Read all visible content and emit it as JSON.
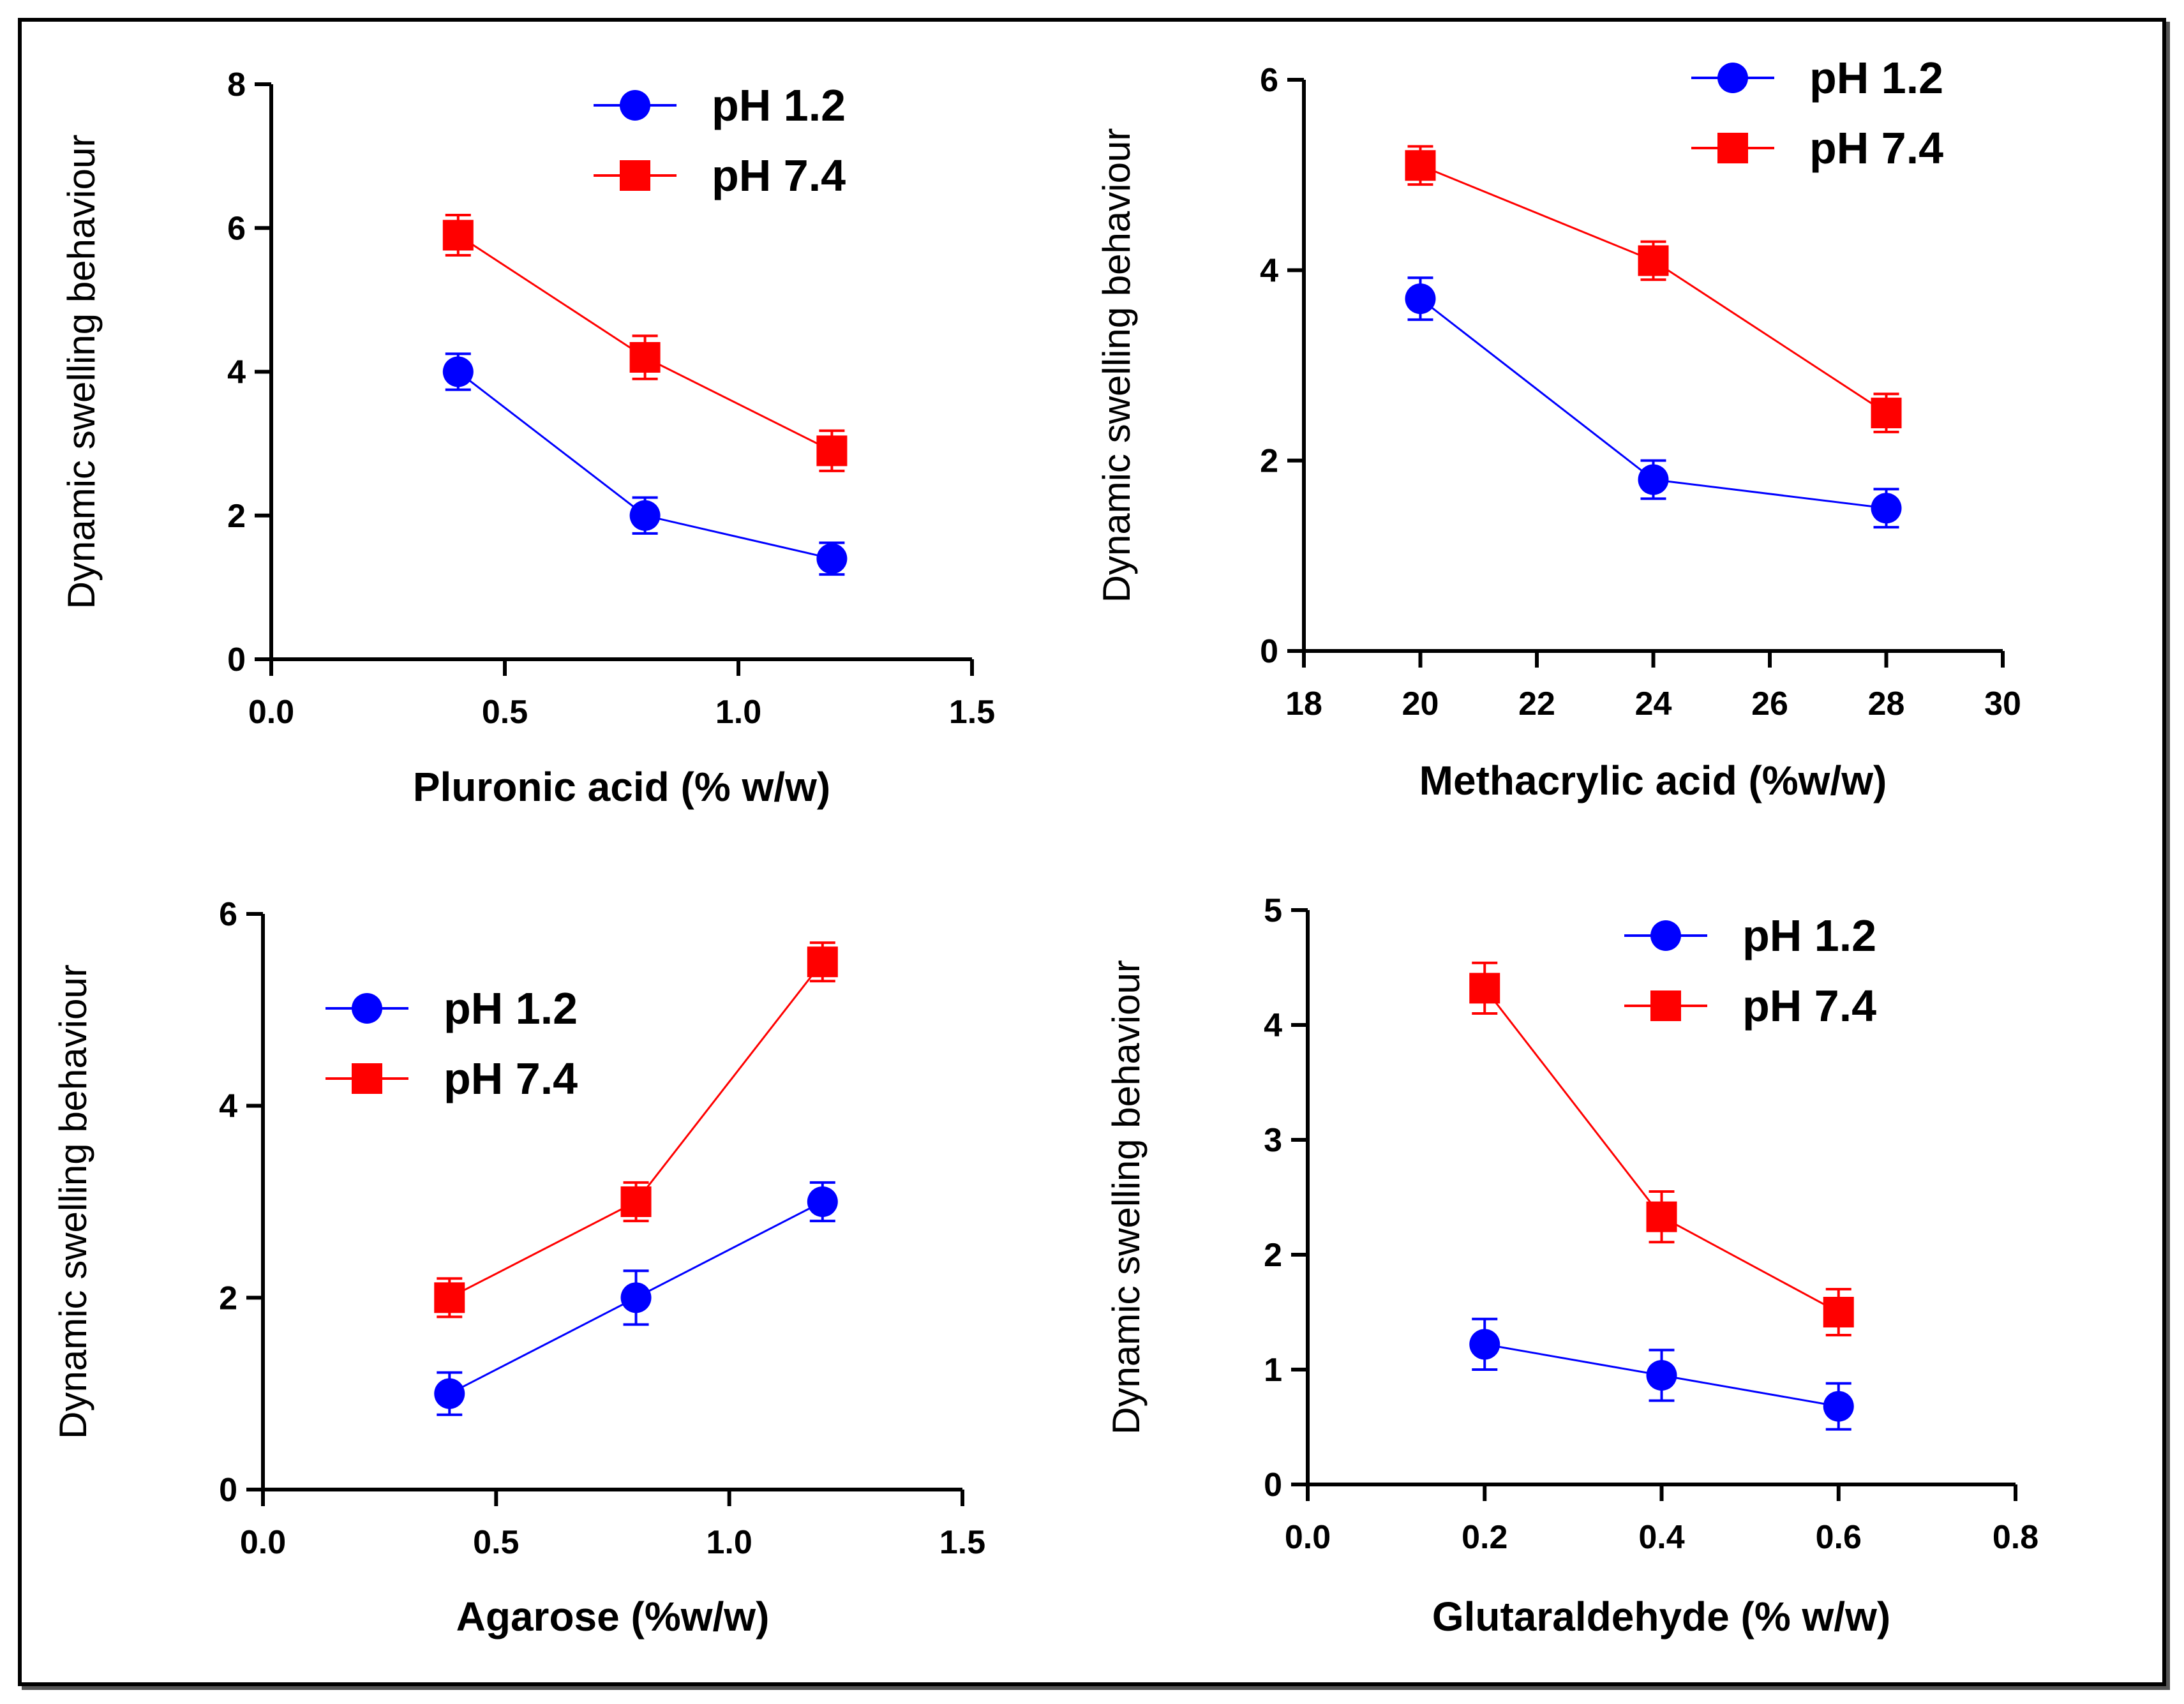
{
  "colors": {
    "ph12": "#0000ff",
    "ph74": "#ff0000",
    "axis": "#000000"
  },
  "chart_data": [
    {
      "type": "line",
      "title": "",
      "xlabel": "Pluronic acid (% w/w)",
      "ylabel": "Dynamic swelling behaviour",
      "xlim": [
        0.0,
        1.5
      ],
      "ylim": [
        0,
        8
      ],
      "xticks": [
        "0.0",
        "0.5",
        "1.0",
        "1.5"
      ],
      "yticks": [
        "0",
        "2",
        "4",
        "6",
        "8"
      ],
      "legend_position": "top-right",
      "series": [
        {
          "name": "pH 1.2",
          "color": "#0000ff",
          "marker": "circle",
          "x": [
            0.4,
            0.8,
            1.2
          ],
          "y": [
            4.0,
            2.0,
            1.4
          ],
          "err": [
            0.25,
            0.25,
            0.22
          ]
        },
        {
          "name": "pH 7.4",
          "color": "#ff0000",
          "marker": "square",
          "x": [
            0.4,
            0.8,
            1.2
          ],
          "y": [
            5.9,
            4.2,
            2.9
          ],
          "err": [
            0.28,
            0.3,
            0.28
          ]
        }
      ]
    },
    {
      "type": "line",
      "title": "",
      "xlabel": "Methacrylic acid (%w/w)",
      "ylabel": "Dynamic swelling behaviour",
      "xlim": [
        18,
        30
      ],
      "ylim": [
        0,
        6
      ],
      "xticks": [
        "18",
        "20",
        "22",
        "24",
        "26",
        "28",
        "30"
      ],
      "yticks": [
        "0",
        "2",
        "4",
        "6"
      ],
      "legend_position": "top-right",
      "series": [
        {
          "name": "pH 1.2",
          "color": "#0000ff",
          "marker": "circle",
          "x": [
            20,
            24,
            28
          ],
          "y": [
            3.7,
            1.8,
            1.5
          ],
          "err": [
            0.22,
            0.2,
            0.2
          ]
        },
        {
          "name": "pH 7.4",
          "color": "#ff0000",
          "marker": "square",
          "x": [
            20,
            24,
            28
          ],
          "y": [
            5.1,
            4.1,
            2.5
          ],
          "err": [
            0.2,
            0.2,
            0.2
          ]
        }
      ]
    },
    {
      "type": "line",
      "title": "",
      "xlabel": "Agarose (%w/w)",
      "ylabel": "Dynamic swelling behaviour",
      "xlim": [
        0.0,
        1.5
      ],
      "ylim": [
        0,
        6
      ],
      "xticks": [
        "0.0",
        "0.5",
        "1.0",
        "1.5"
      ],
      "yticks": [
        "0",
        "2",
        "4",
        "6"
      ],
      "legend_position": "top-left",
      "series": [
        {
          "name": "pH 1.2",
          "color": "#0000ff",
          "marker": "circle",
          "x": [
            0.4,
            0.8,
            1.2
          ],
          "y": [
            1.0,
            2.0,
            3.0
          ],
          "err": [
            0.22,
            0.28,
            0.2
          ]
        },
        {
          "name": "pH 7.4",
          "color": "#ff0000",
          "marker": "square",
          "x": [
            0.4,
            0.8,
            1.2
          ],
          "y": [
            2.0,
            3.0,
            5.5
          ],
          "err": [
            0.2,
            0.2,
            0.2
          ]
        }
      ]
    },
    {
      "type": "line",
      "title": "",
      "xlabel": "Glutaraldehyde (% w/w)",
      "ylabel": "Dynamic swelling behaviour",
      "xlim": [
        0.0,
        0.8
      ],
      "ylim": [
        0,
        5
      ],
      "xticks": [
        "0.0",
        "0.2",
        "0.4",
        "0.6",
        "0.8"
      ],
      "yticks": [
        "0",
        "1",
        "2",
        "3",
        "4",
        "5"
      ],
      "legend_position": "top-right",
      "series": [
        {
          "name": "pH 1.2",
          "color": "#0000ff",
          "marker": "circle",
          "x": [
            0.2,
            0.4,
            0.6
          ],
          "y": [
            1.22,
            0.95,
            0.68
          ],
          "err": [
            0.22,
            0.22,
            0.2
          ]
        },
        {
          "name": "pH 7.4",
          "color": "#ff0000",
          "marker": "square",
          "x": [
            0.2,
            0.4,
            0.6
          ],
          "y": [
            4.32,
            2.33,
            1.5
          ],
          "err": [
            0.22,
            0.22,
            0.2
          ]
        }
      ]
    }
  ]
}
